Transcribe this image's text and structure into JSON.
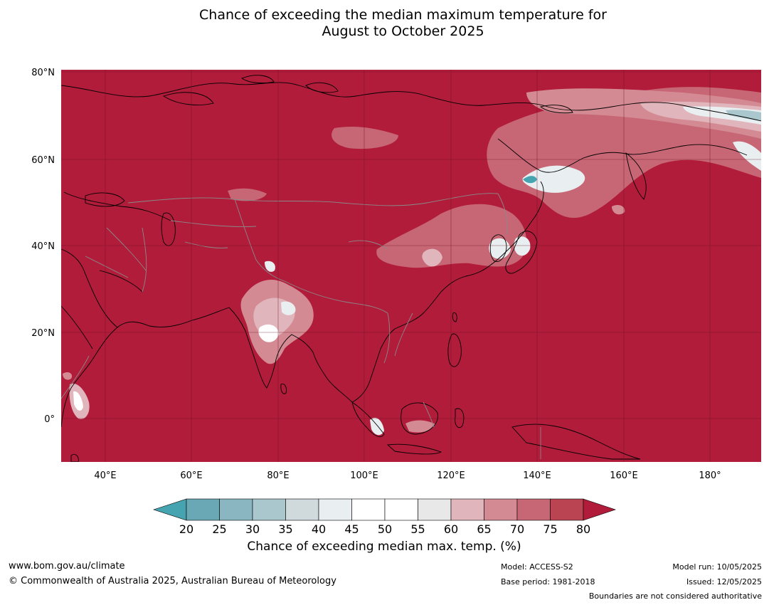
{
  "title": {
    "line1": "Chance of exceeding the median maximum temperature for",
    "line2": "August to October 2025"
  },
  "map": {
    "lon_range": [
      30,
      192
    ],
    "lat_range": [
      -10,
      81
    ],
    "lon_ticks": [
      "40°E",
      "60°E",
      "80°E",
      "100°E",
      "120°E",
      "140°E",
      "160°E",
      "180°"
    ],
    "lat_ticks": [
      "80°N",
      "60°N",
      "40°N",
      "20°N",
      "0°"
    ],
    "background_class": "80+",
    "colors": {
      "ocean_land": "#b01c3a",
      "land_outline": "#000000",
      "border": "#888888",
      "grid": "#6a1424"
    }
  },
  "colorbar": {
    "title": "Chance of exceeding median max. temp. (%)",
    "tick_labels": [
      "20",
      "25",
      "30",
      "35",
      "40",
      "45",
      "50",
      "55",
      "60",
      "65",
      "70",
      "75",
      "80"
    ],
    "colors": [
      "#6aa8b5",
      "#8ab6c2",
      "#aac7cd",
      "#d0dadd",
      "#e9eff0",
      "#ffffff",
      "#ffffff",
      "#e8e8e8",
      "#e0b5bb",
      "#d48a93",
      "#c76674",
      "#bb4453"
    ],
    "under_color": "#46a3b0",
    "over_color": "#b01c3a"
  },
  "footer": {
    "website": "www.bom.gov.au/climate",
    "copyright": "© Commonwealth of Australia 2025, Australian Bureau of Meteorology",
    "model": "Model: ACCESS-S2",
    "base_period": "Base period: 1981-2018",
    "model_run": "Model run: 10/05/2025",
    "issued": "Issued: 12/05/2025",
    "disclaimer": "Boundaries are not considered authoritative"
  }
}
